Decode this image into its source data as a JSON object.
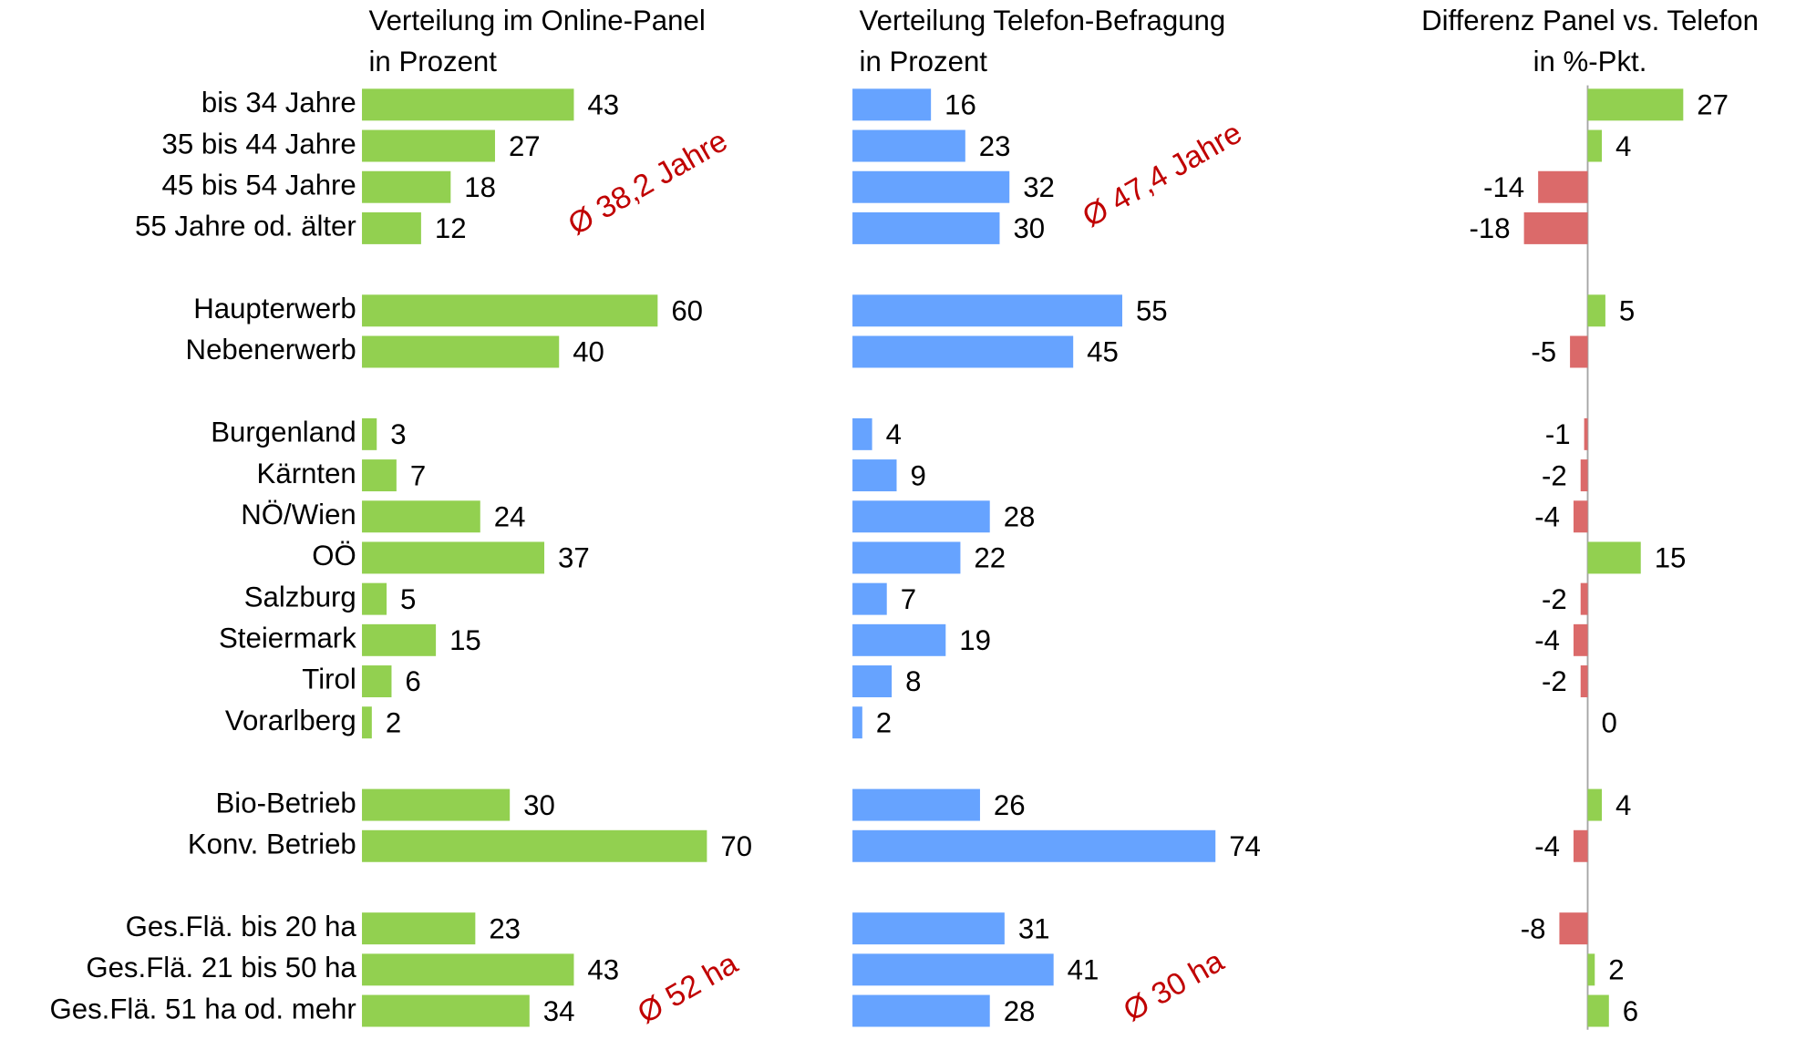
{
  "chart_data": [
    {
      "type": "hbar",
      "title": [
        "Verteilung im Online-Panel",
        "in Prozent"
      ],
      "color": "#92d050",
      "categories": [
        [
          "bis 34 Jahre",
          "35 bis 44 Jahre",
          "45 bis 54 Jahre",
          "55 Jahre od. älter"
        ],
        [
          "Haupterwerb",
          "Nebenerwerb"
        ],
        [
          "Burgenland",
          "Kärnten",
          "NÖ/Wien",
          "OÖ",
          "Salzburg",
          "Steiermark",
          "Tirol",
          "Vorarlberg"
        ],
        [
          "Bio-Betrieb",
          "Konv. Betrieb"
        ],
        [
          "Ges.Flä. bis 20 ha",
          "Ges.Flä. 21 bis 50 ha",
          "Ges.Flä. 51 ha od. mehr"
        ]
      ],
      "values": [
        [
          43,
          27,
          18,
          12
        ],
        [
          60,
          40
        ],
        [
          3,
          7,
          24,
          37,
          5,
          15,
          6,
          2
        ],
        [
          30,
          70
        ],
        [
          23,
          43,
          34
        ]
      ],
      "annotations": [
        "Ø 38,2 Jahre",
        "Ø 52 ha"
      ]
    },
    {
      "type": "hbar",
      "title": [
        "Verteilung Telefon-Befragung",
        "in Prozent"
      ],
      "color": "#66a3ff",
      "values": [
        [
          16,
          23,
          32,
          30
        ],
        [
          55,
          45
        ],
        [
          4,
          9,
          28,
          22,
          7,
          19,
          8,
          2
        ],
        [
          26,
          74
        ],
        [
          31,
          41,
          28
        ]
      ],
      "annotations": [
        "Ø 47,4 Jahre",
        "Ø 30 ha"
      ]
    },
    {
      "type": "diverging",
      "title": [
        "Differenz Panel vs. Telefon",
        "in %-Pkt."
      ],
      "color": "#92d050",
      "negative_color": "#db6a6a",
      "values": [
        [
          27,
          4,
          -14,
          -18
        ],
        [
          5,
          -5
        ],
        [
          -1,
          -2,
          -4,
          15,
          -2,
          -4,
          -2,
          0
        ],
        [
          4,
          -4
        ],
        [
          -8,
          2,
          6
        ]
      ]
    }
  ]
}
